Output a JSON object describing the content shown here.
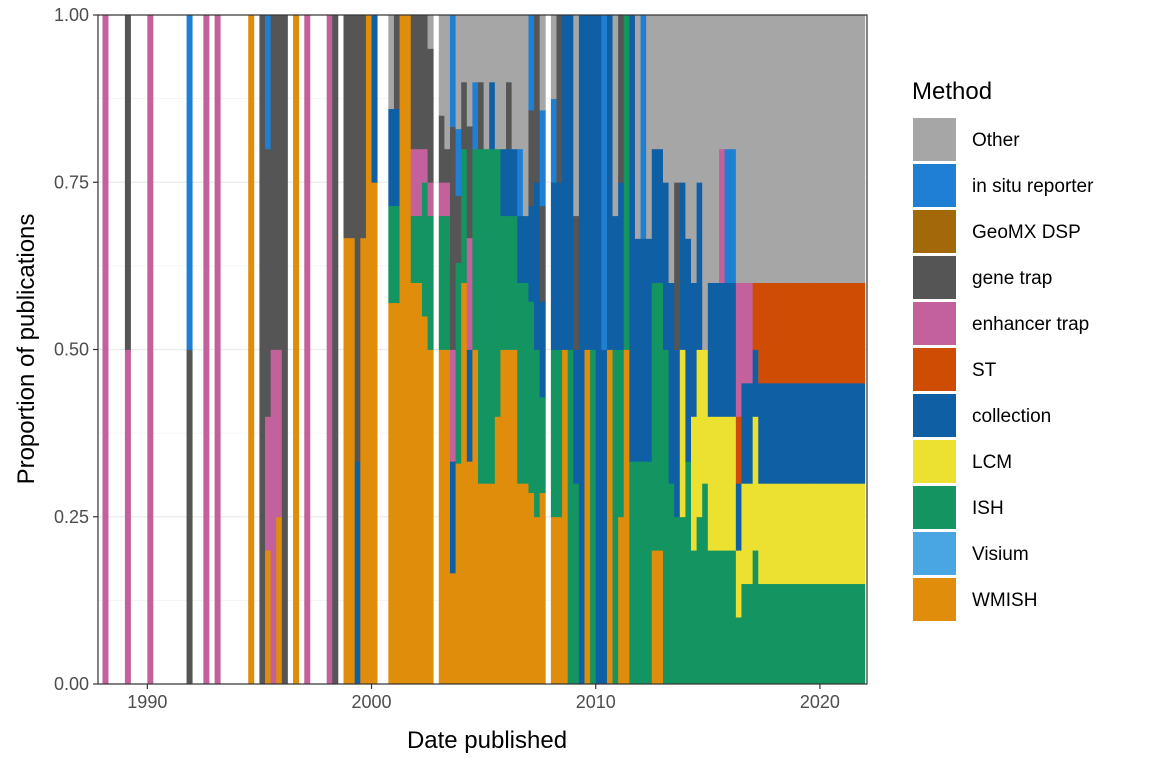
{
  "chart_data": {
    "type": "bar",
    "subtype": "stacked proportional histogram",
    "title": "",
    "xlabel": "Date published",
    "ylabel": "Proportion of publications",
    "xlim": [
      1987.8,
      2022.1
    ],
    "ylim": [
      0,
      1
    ],
    "x_ticks": [
      "1990",
      "2000",
      "2010",
      "2020"
    ],
    "y_ticks": [
      "0.00",
      "0.25",
      "0.50",
      "0.75",
      "1.00"
    ],
    "grid": true,
    "legend": {
      "title": "Method",
      "position": "right",
      "entries": [
        "Other",
        "in situ reporter",
        "GeoMX DSP",
        "gene trap",
        "enhancer trap",
        "ST",
        "collection",
        "LCM",
        "ISH",
        "Visium",
        "WMISH"
      ]
    },
    "colors": {
      "Other": "#a6a6a6",
      "in situ reporter": "#1f80d3",
      "GeoMX DSP": "#a3680a",
      "gene trap": "#555555",
      "enhancer trap": "#c2619b",
      "ST": "#cf4c05",
      "collection": "#0f5fa5",
      "LCM": "#ece130",
      "ISH": "#149461",
      "Visium": "#4aa6e2",
      "WMISH": "#df8d0a"
    },
    "stack_order": [
      "WMISH",
      "Visium",
      "ISH",
      "LCM",
      "collection",
      "ST",
      "enhancer trap",
      "gene trap",
      "GeoMX DSP",
      "in situ reporter",
      "Other"
    ],
    "bin_width": 0.25,
    "bins": [
      {
        "x": 1988.0,
        "v": {
          "enhancer trap": 1
        }
      },
      {
        "x": 1989.0,
        "v": {
          "enhancer trap": 0.5,
          "gene trap": 0.5
        }
      },
      {
        "x": 1990.0,
        "v": {
          "enhancer trap": 1
        }
      },
      {
        "x": 1991.75,
        "v": {
          "gene trap": 0.5,
          "in situ reporter": 0.5
        }
      },
      {
        "x": 1992.5,
        "v": {
          "enhancer trap": 1
        }
      },
      {
        "x": 1993.0,
        "v": {
          "enhancer trap": 1
        }
      },
      {
        "x": 1994.5,
        "v": {
          "WMISH": 1
        }
      },
      {
        "x": 1995.0,
        "v": {
          "gene trap": 1
        }
      },
      {
        "x": 1995.25,
        "v": {
          "WMISH": 0.2,
          "enhancer trap": 0.2,
          "gene trap": 0.4,
          "in situ reporter": 0.2
        }
      },
      {
        "x": 1995.5,
        "v": {
          "enhancer trap": 0.5,
          "gene trap": 0.5
        }
      },
      {
        "x": 1995.75,
        "v": {
          "WMISH": 0.25,
          "enhancer trap": 0.25,
          "gene trap": 0.5
        }
      },
      {
        "x": 1996.0,
        "v": {
          "gene trap": 1
        }
      },
      {
        "x": 1996.5,
        "v": {
          "WMISH": 1
        }
      },
      {
        "x": 1997.0,
        "v": {
          "enhancer trap": 1
        }
      },
      {
        "x": 1998.0,
        "v": {
          "enhancer trap": 1
        }
      },
      {
        "x": 1998.25,
        "v": {
          "gene trap": 1
        }
      },
      {
        "x": 1998.75,
        "v": {
          "WMISH": 0.667,
          "gene trap": 0.333
        }
      },
      {
        "x": 1999.0,
        "v": {
          "WMISH": 0.667,
          "gene trap": 0.333
        }
      },
      {
        "x": 1999.25,
        "v": {
          "collection": 0.333,
          "gene trap": 0.667
        }
      },
      {
        "x": 1999.5,
        "v": {
          "WMISH": 0.667,
          "gene trap": 0.333
        }
      },
      {
        "x": 1999.75,
        "v": {
          "WMISH": 1
        }
      },
      {
        "x": 2000.0,
        "v": {
          "WMISH": 0.75,
          "collection": 0.25
        }
      },
      {
        "x": 2000.75,
        "v": {
          "WMISH": 0.57,
          "ISH": 0.145,
          "collection": 0.145,
          "Other": 0.14
        }
      },
      {
        "x": 2001.0,
        "v": {
          "WMISH": 0.57,
          "ISH": 0.145,
          "collection": 0.145,
          "gene trap": 0.14
        }
      },
      {
        "x": 2001.25,
        "v": {
          "WMISH": 1
        }
      },
      {
        "x": 2001.5,
        "v": {
          "WMISH": 1
        }
      },
      {
        "x": 2001.75,
        "v": {
          "WMISH": 0.6,
          "ISH": 0.1,
          "enhancer trap": 0.1,
          "gene trap": 0.2
        }
      },
      {
        "x": 2002.0,
        "v": {
          "WMISH": 0.6,
          "ISH": 0.1,
          "enhancer trap": 0.1,
          "gene trap": 0.2
        }
      },
      {
        "x": 2002.25,
        "v": {
          "WMISH": 0.55,
          "ISH": 0.2,
          "enhancer trap": 0.05,
          "gene trap": 0.2
        }
      },
      {
        "x": 2002.5,
        "v": {
          "WMISH": 0.5,
          "ISH": 0.2,
          "enhancer trap": 0.05,
          "gene trap": 0.2,
          "Other": 0.05
        }
      },
      {
        "x": 2003.0,
        "v": {
          "WMISH": 0.5,
          "ISH": 0.2,
          "enhancer trap": 0.05,
          "gene trap": 0.1,
          "Other": 0.15
        }
      },
      {
        "x": 2003.25,
        "v": {
          "WMISH": 0.5,
          "ISH": 0.2,
          "enhancer trap": 0.05,
          "gene trap": 0.05,
          "Other": 0.2
        }
      },
      {
        "x": 2003.5,
        "v": {
          "WMISH": 0.166,
          "enhancer trap": 0.167,
          "gene trap": 0.333,
          "collection": 0.167,
          "in situ reporter": 0.167
        }
      },
      {
        "x": 2003.75,
        "v": {
          "WMISH": 0.33,
          "ISH": 0.3,
          "gene trap": 0.1,
          "in situ reporter": 0.1,
          "Other": 0.17
        }
      },
      {
        "x": 2004.0,
        "v": {
          "WMISH": 0.6,
          "ISH": 0.2,
          "gene trap": 0.1,
          "Other": 0.1
        }
      },
      {
        "x": 2004.25,
        "v": {
          "WMISH": 0.333,
          "enhancer trap": 0.167,
          "gene trap": 0.167,
          "collection": 0.167,
          "Other": 0.166
        }
      },
      {
        "x": 2004.5,
        "v": {
          "WMISH": 0.5,
          "ISH": 0.3,
          "in situ reporter": 0.1,
          "Other": 0.1
        }
      },
      {
        "x": 2004.75,
        "v": {
          "WMISH": 0.3,
          "ISH": 0.5,
          "gene trap": 0.1,
          "Other": 0.1
        }
      },
      {
        "x": 2005.0,
        "v": {
          "WMISH": 0.3,
          "ISH": 0.5,
          "Other": 0.2
        }
      },
      {
        "x": 2005.25,
        "v": {
          "WMISH": 0.3,
          "ISH": 0.5,
          "collection": 0.1,
          "Other": 0.1
        }
      },
      {
        "x": 2005.5,
        "v": {
          "WMISH": 0.4,
          "ISH": 0.4,
          "Other": 0.2
        }
      },
      {
        "x": 2005.75,
        "v": {
          "WMISH": 0.5,
          "ISH": 0.2,
          "collection": 0.1,
          "Other": 0.2
        }
      },
      {
        "x": 2006.0,
        "v": {
          "WMISH": 0.5,
          "ISH": 0.2,
          "collection": 0.1,
          "gene trap": 0.1,
          "Other": 0.1
        }
      },
      {
        "x": 2006.25,
        "v": {
          "WMISH": 0.5,
          "ISH": 0.2,
          "collection": 0.1,
          "Other": 0.2
        }
      },
      {
        "x": 2006.5,
        "v": {
          "WMISH": 0.3,
          "ISH": 0.3,
          "collection": 0.1,
          "in situ reporter": 0.1,
          "Other": 0.2
        }
      },
      {
        "x": 2006.75,
        "v": {
          "WMISH": 0.3,
          "ISH": 0.3,
          "collection": 0.1,
          "Other": 0.3
        }
      },
      {
        "x": 2007.0,
        "v": {
          "WMISH": 0.286,
          "ISH": 0.286,
          "collection": 0.143,
          "gene trap": 0.143,
          "in situ reporter": 0.142
        }
      },
      {
        "x": 2007.25,
        "v": {
          "WMISH": 0.25,
          "ISH": 0.25,
          "collection": 0.25,
          "gene trap": 0.25
        }
      },
      {
        "x": 2007.5,
        "v": {
          "WMISH": 0.286,
          "ISH": 0.143,
          "collection": 0.143,
          "gene trap": 0.143,
          "in situ reporter": 0.143,
          "Other": 0.142
        }
      },
      {
        "x": 2008.0,
        "v": {
          "WMISH": 0.25,
          "ISH": 0.25,
          "collection": 0.25,
          "in situ reporter": 0.125,
          "Other": 0.125
        }
      },
      {
        "x": 2008.25,
        "v": {
          "WMISH": 0.25,
          "ISH": 0.25,
          "collection": 0.25,
          "gene trap": 0.25
        }
      },
      {
        "x": 2008.5,
        "v": {
          "WMISH": 0.5,
          "collection": 0.5
        }
      },
      {
        "x": 2008.75,
        "v": {
          "ISH": 0.5,
          "collection": 0.5
        }
      },
      {
        "x": 2009.0,
        "v": {
          "ISH": 0.3,
          "collection": 0.2,
          "gene trap": 0.2,
          "Other": 0.3
        }
      },
      {
        "x": 2009.25,
        "v": {
          "collection": 1
        }
      },
      {
        "x": 2009.5,
        "v": {
          "WMISH": 0.5,
          "collection": 0.5
        }
      },
      {
        "x": 2009.75,
        "v": {
          "ISH": 0.5,
          "collection": 0.5
        }
      },
      {
        "x": 2010.0,
        "v": {
          "collection": 1
        }
      },
      {
        "x": 2010.25,
        "v": {
          "collection": 0.5,
          "in situ reporter": 0.5
        }
      },
      {
        "x": 2010.5,
        "v": {
          "WMISH": 0.5,
          "collection": 0.5
        }
      },
      {
        "x": 2010.75,
        "v": {
          "ISH": 0.5,
          "collection": 0.2,
          "Other": 0.3
        }
      },
      {
        "x": 2011.0,
        "v": {
          "WMISH": 0.25,
          "ISH": 0.25,
          "collection": 0.25,
          "gene trap": 0.25
        }
      },
      {
        "x": 2011.25,
        "v": {
          "WMISH": 0.5,
          "ISH": 0.5
        }
      },
      {
        "x": 2011.5,
        "v": {
          "ISH": 0.333,
          "collection": 0.667
        }
      },
      {
        "x": 2011.75,
        "v": {
          "ISH": 0.333,
          "collection": 0.333,
          "Other": 0.334
        }
      },
      {
        "x": 2012.0,
        "v": {
          "ISH": 0.333,
          "collection": 0.333,
          "in situ reporter": 0.334
        }
      },
      {
        "x": 2012.25,
        "v": {
          "ISH": 0.333,
          "collection": 0.333,
          "Other": 0.334
        }
      },
      {
        "x": 2012.5,
        "v": {
          "WMISH": 0.2,
          "ISH": 0.4,
          "collection": 0.2,
          "Other": 0.2
        }
      },
      {
        "x": 2012.75,
        "v": {
          "WMISH": 0.2,
          "ISH": 0.4,
          "collection": 0.2,
          "Other": 0.2
        }
      },
      {
        "x": 2013.0,
        "v": {
          "ISH": 0.5,
          "collection": 0.25,
          "Other": 0.25
        }
      },
      {
        "x": 2013.25,
        "v": {
          "ISH": 0.3,
          "collection": 0.3,
          "Other": 0.4
        }
      },
      {
        "x": 2013.5,
        "v": {
          "ISH": 0.25,
          "collection": 0.25,
          "gene trap": 0.25,
          "Other": 0.25
        }
      },
      {
        "x": 2013.75,
        "v": {
          "ISH": 0.25,
          "LCM": 0.25,
          "collection": 0.25,
          "Other": 0.25
        }
      },
      {
        "x": 2014.0,
        "v": {
          "ISH": 0.333,
          "collection": 0.333,
          "Other": 0.334
        }
      },
      {
        "x": 2014.25,
        "v": {
          "ISH": 0.2,
          "LCM": 0.2,
          "collection": 0.2,
          "Other": 0.4
        }
      },
      {
        "x": 2014.5,
        "v": {
          "ISH": 0.25,
          "LCM": 0.25,
          "collection": 0.25,
          "Other": 0.25
        }
      },
      {
        "x": 2014.75,
        "v": {
          "ISH": 0.3,
          "LCM": 0.2,
          "Other": 0.5
        }
      },
      {
        "x": 2015.0,
        "v": {
          "ISH": 0.2,
          "LCM": 0.2,
          "collection": 0.2,
          "Other": 0.4
        }
      },
      {
        "x": 2015.25,
        "v": {
          "ISH": 0.2,
          "LCM": 0.2,
          "collection": 0.2,
          "Other": 0.4
        }
      },
      {
        "x": 2015.5,
        "v": {
          "ISH": 0.2,
          "LCM": 0.2,
          "collection": 0.2,
          "enhancer trap": 0.2,
          "Other": 0.2
        }
      },
      {
        "x": 2015.75,
        "v": {
          "ISH": 0.2,
          "LCM": 0.2,
          "collection": 0.2,
          "in situ reporter": 0.2,
          "Other": 0.2
        }
      },
      {
        "x": 2016.0,
        "v": {
          "ISH": 0.2,
          "LCM": 0.2,
          "collection": 0.2,
          "in situ reporter": 0.2,
          "Other": 0.2
        }
      },
      {
        "x": 2016.25,
        "v": {
          "ISH": 0.1,
          "LCM": 0.1,
          "collection": 0.1,
          "ST": 0.1,
          "enhancer trap": 0.2,
          "Other": 0.4
        }
      },
      {
        "x": 2016.5,
        "v": {
          "ISH": 0.15,
          "LCM": 0.15,
          "collection": 0.15,
          "enhancer trap": 0.15,
          "Other": 0.4
        }
      },
      {
        "x": 2016.75,
        "v": {
          "ISH": 0.15,
          "LCM": 0.15,
          "collection": 0.15,
          "enhancer trap": 0.15,
          "Other": 0.4
        }
      },
      {
        "x": 2017.0,
        "v": {
          "ISH": 0.2,
          "LCM": 0.2,
          "collection": 0.1,
          "ST": 0.1,
          "Other": 0.4
        }
      },
      {
        "x": 2017.25,
        "v": {
          "ISH": 0.15,
          "LCM": 0.15,
          "collection": 0.15,
          "ST": 0.15,
          "Other": 0.4
        }
      },
      {
        "x": 2017.5,
        "v": {
          "ISH": 0.15,
          "LCM": 0.15,
          "collection": 0.15,
          "ST": 0.15,
          "Other": 0.4
        }
      },
      {
        "x": 2017.75,
        "v": {
          "ISH": 0.15,
          "LCM": 0.15,
          "collection": 0.15,
          "ST": 0.15,
          "Other": 0.4
        }
      },
      {
        "x": 2018.0,
        "v": {
          "ISH": 0.15,
          "LCM": 0.15,
          "collection": 0.15,
          "ST": 0.15,
          "Other": 0.4
        }
      },
      {
        "x": 2018.25,
        "v": {
          "ISH": 0.15,
          "LCM": 0.15,
          "collection": 0.15,
          "ST": 0.15,
          "Other": 0.4
        }
      },
      {
        "x": 2018.5,
        "v": {
          "ISH": 0.15,
          "LCM": 0.15,
          "collection": 0.15,
          "ST": 0.15,
          "Other": 0.4
        }
      },
      {
        "x": 2018.75,
        "v": {
          "ISH": 0.15,
          "LCM": 0.15,
          "collection": 0.15,
          "ST": 0.15,
          "Other": 0.4
        }
      },
      {
        "x": 2019.0,
        "v": {
          "ISH": 0.15,
          "LCM": 0.15,
          "collection": 0.15,
          "ST": 0.15,
          "Other": 0.4
        }
      },
      {
        "x": 2019.25,
        "v": {
          "ISH": 0.15,
          "LCM": 0.15,
          "collection": 0.15,
          "ST": 0.15,
          "Other": 0.4
        }
      },
      {
        "x": 2019.5,
        "v": {
          "ISH": 0.15,
          "LCM": 0.15,
          "collection": 0.15,
          "ST": 0.15,
          "Other": 0.4
        }
      },
      {
        "x": 2019.75,
        "v": {
          "ISH": 0.15,
          "LCM": 0.15,
          "collection": 0.15,
          "ST": 0.15,
          "Other": 0.4
        }
      },
      {
        "x": 2020.0,
        "v": {
          "ISH": 0.15,
          "LCM": 0.15,
          "collection": 0.15,
          "ST": 0.15,
          "Other": 0.4
        }
      },
      {
        "x": 2020.25,
        "v": {
          "ISH": 0.15,
          "LCM": 0.15,
          "collection": 0.15,
          "ST": 0.15,
          "Other": 0.4
        }
      },
      {
        "x": 2020.5,
        "v": {
          "ISH": 0.15,
          "LCM": 0.15,
          "collection": 0.15,
          "ST": 0.15,
          "Other": 0.4
        }
      },
      {
        "x": 2020.75,
        "v": {
          "ISH": 0.15,
          "LCM": 0.15,
          "collection": 0.15,
          "ST": 0.15,
          "Other": 0.4
        }
      },
      {
        "x": 2021.0,
        "v": {
          "ISH": 0.15,
          "LCM": 0.15,
          "collection": 0.15,
          "ST": 0.15,
          "Other": 0.4
        }
      },
      {
        "x": 2021.25,
        "v": {
          "ISH": 0.15,
          "LCM": 0.15,
          "collection": 0.15,
          "ST": 0.15,
          "Other": 0.4
        }
      },
      {
        "x": 2021.5,
        "v": {
          "ISH": 0.15,
          "LCM": 0.15,
          "collection": 0.15,
          "ST": 0.15,
          "Other": 0.4
        }
      },
      {
        "x": 2021.75,
        "v": {
          "ISH": 0.15,
          "LCM": 0.15,
          "collection": 0.15,
          "ST": 0.15,
          "Other": 0.4
        }
      }
    ]
  }
}
